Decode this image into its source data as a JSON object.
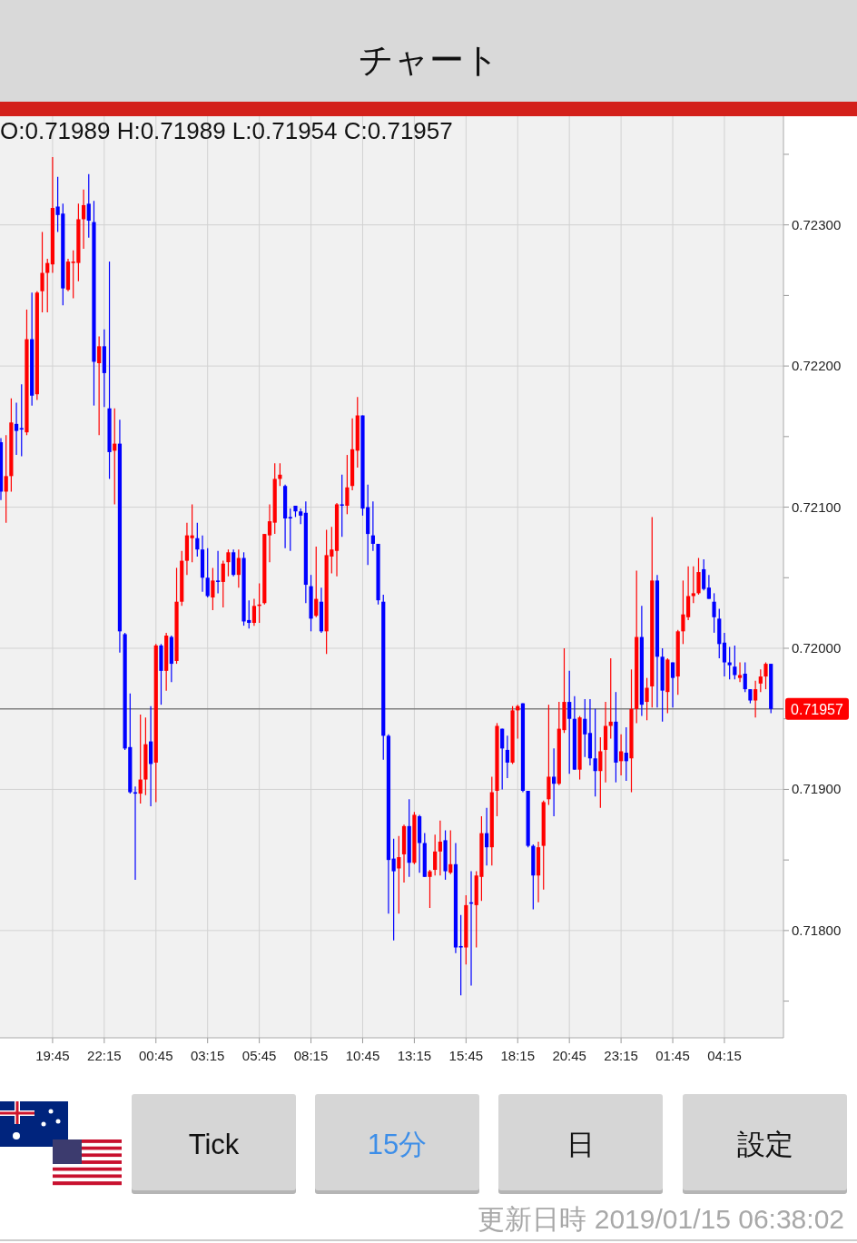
{
  "chart_data": {
    "type": "candlestick",
    "title": "チャート",
    "categories": [
      null,
      null,
      null,
      null,
      null,
      null,
      null,
      null,
      null,
      null,
      "19:45",
      null,
      null,
      null,
      null,
      null,
      null,
      null,
      null,
      null,
      "22:15",
      null,
      null,
      null,
      null,
      null,
      null,
      null,
      null,
      null,
      "00:45",
      null,
      null,
      null,
      null,
      null,
      null,
      null,
      null,
      null,
      "03:15",
      null,
      null,
      null,
      null,
      null,
      null,
      null,
      null,
      null,
      "05:45",
      null,
      null,
      null,
      null,
      null,
      null,
      null,
      null,
      null,
      "08:15",
      null,
      null,
      null,
      null,
      null,
      null,
      null,
      null,
      null,
      "10:45",
      null,
      null,
      null,
      null,
      null,
      null,
      null,
      null,
      null,
      "13:15",
      null,
      null,
      null,
      null,
      null,
      null,
      null,
      null,
      null,
      "15:45",
      null,
      null,
      null,
      null,
      null,
      null,
      null,
      null,
      null,
      "18:15",
      null,
      null,
      null,
      null,
      null,
      null,
      null,
      null,
      null,
      "20:45",
      null,
      null,
      null,
      null,
      null,
      null,
      null,
      null,
      null,
      "23:15",
      null,
      null,
      null,
      null,
      null,
      null,
      null,
      null,
      null,
      "01:45",
      null,
      null,
      null,
      null,
      null,
      null,
      null,
      null,
      null,
      "04:15",
      null,
      null,
      null,
      null,
      null,
      null,
      null,
      null,
      null
    ],
    "ohlc": [
      [
        0.72146,
        0.72149,
        0.72105,
        0.72111
      ],
      [
        0.72111,
        0.72151,
        0.72089,
        0.72122
      ],
      [
        0.72122,
        0.72177,
        0.72111,
        0.7216
      ],
      [
        0.72159,
        0.72174,
        0.72137,
        0.72154
      ],
      [
        0.72156,
        0.72187,
        0.72136,
        0.72155
      ],
      [
        0.72153,
        0.7224,
        0.72151,
        0.72219
      ],
      [
        0.72219,
        0.72252,
        0.72172,
        0.72179
      ],
      [
        0.7218,
        0.72253,
        0.72176,
        0.72252
      ],
      [
        0.72253,
        0.72295,
        0.72238,
        0.72266
      ],
      [
        0.72266,
        0.72276,
        0.72238,
        0.72273
      ],
      [
        0.72272,
        0.72348,
        0.72266,
        0.72312
      ],
      [
        0.72313,
        0.72334,
        0.72295,
        0.72307
      ],
      [
        0.72308,
        0.72315,
        0.72243,
        0.72255
      ],
      [
        0.72254,
        0.72276,
        0.72253,
        0.72274
      ],
      [
        0.72273,
        0.72282,
        0.72248,
        0.72274
      ],
      [
        0.72273,
        0.72315,
        0.7226,
        0.72304
      ],
      [
        0.72304,
        0.72325,
        0.72283,
        0.72314
      ],
      [
        0.72315,
        0.72336,
        0.72291,
        0.72303
      ],
      [
        0.72302,
        0.72317,
        0.72172,
        0.72203
      ],
      [
        0.72202,
        0.72221,
        0.72151,
        0.72214
      ],
      [
        0.72214,
        0.72226,
        0.72171,
        0.72195
      ],
      [
        0.7217,
        0.72274,
        0.7212,
        0.72139
      ],
      [
        0.7214,
        0.7217,
        0.72102,
        0.72145
      ],
      [
        0.72145,
        0.72162,
        0.71997,
        0.72012
      ],
      [
        0.7201,
        0.72011,
        0.71928,
        0.71929
      ],
      [
        0.7193,
        0.71968,
        0.71897,
        0.71898
      ],
      [
        0.71898,
        0.71902,
        0.71836,
        0.71897
      ],
      [
        0.71897,
        0.71953,
        0.7189,
        0.71907
      ],
      [
        0.71907,
        0.71951,
        0.71896,
        0.71932
      ],
      [
        0.71934,
        0.71959,
        0.71888,
        0.71918
      ],
      [
        0.71919,
        0.72003,
        0.71891,
        0.72002
      ],
      [
        0.72002,
        0.72003,
        0.7196,
        0.71984
      ],
      [
        0.71984,
        0.72011,
        0.7197,
        0.72009
      ],
      [
        0.72008,
        0.72009,
        0.71976,
        0.71989
      ],
      [
        0.71991,
        0.72057,
        0.71989,
        0.72033
      ],
      [
        0.72033,
        0.72069,
        0.7203,
        0.72062
      ],
      [
        0.72062,
        0.72089,
        0.72052,
        0.7208
      ],
      [
        0.72078,
        0.72102,
        0.72061,
        0.7208
      ],
      [
        0.72078,
        0.72089,
        0.72065,
        0.7207
      ],
      [
        0.7207,
        0.7208,
        0.7204,
        0.7205
      ],
      [
        0.7205,
        0.72071,
        0.72036,
        0.72037
      ],
      [
        0.72036,
        0.72057,
        0.72027,
        0.72048
      ],
      [
        0.72048,
        0.72069,
        0.72039,
        0.72047
      ],
      [
        0.72047,
        0.72062,
        0.72029,
        0.7206
      ],
      [
        0.72061,
        0.7207,
        0.72051,
        0.72068
      ],
      [
        0.72068,
        0.7207,
        0.72051,
        0.72052
      ],
      [
        0.72052,
        0.7207,
        0.72043,
        0.72064
      ],
      [
        0.72064,
        0.72068,
        0.72016,
        0.72019
      ],
      [
        0.7202,
        0.72034,
        0.72014,
        0.72018
      ],
      [
        0.72018,
        0.72035,
        0.72016,
        0.7203
      ],
      [
        0.7203,
        0.72046,
        0.72018,
        0.72031
      ],
      [
        0.72032,
        0.72081,
        0.72031,
        0.72081
      ],
      [
        0.7208,
        0.72102,
        0.72061,
        0.7209
      ],
      [
        0.72089,
        0.72131,
        0.72081,
        0.7212
      ],
      [
        0.7212,
        0.72131,
        0.72115,
        0.72123
      ],
      [
        0.72115,
        0.72116,
        0.72071,
        0.72092
      ],
      [
        0.72093,
        0.72099,
        0.72069,
        0.72092
      ],
      [
        0.72101,
        0.72101,
        0.72093,
        0.72097
      ],
      [
        0.72097,
        0.72099,
        0.72088,
        0.72094
      ],
      [
        0.72096,
        0.72104,
        0.72032,
        0.72045
      ],
      [
        0.72044,
        0.72052,
        0.72012,
        0.72021
      ],
      [
        0.72023,
        0.72072,
        0.72022,
        0.72035
      ],
      [
        0.72033,
        0.72043,
        0.72011,
        0.72012
      ],
      [
        0.72012,
        0.72084,
        0.71996,
        0.72066
      ],
      [
        0.72065,
        0.72086,
        0.72053,
        0.7207
      ],
      [
        0.72069,
        0.72103,
        0.72051,
        0.72102
      ],
      [
        0.72102,
        0.72123,
        0.72079,
        0.72101
      ],
      [
        0.72101,
        0.72137,
        0.72095,
        0.72114
      ],
      [
        0.72115,
        0.72163,
        0.72112,
        0.72141
      ],
      [
        0.7214,
        0.72178,
        0.72128,
        0.72165
      ],
      [
        0.72165,
        0.72165,
        0.72094,
        0.72099
      ],
      [
        0.721,
        0.72116,
        0.72059,
        0.72081
      ],
      [
        0.7208,
        0.72104,
        0.72069,
        0.72074
      ],
      [
        0.72074,
        0.72074,
        0.72031,
        0.72034
      ],
      [
        0.72033,
        0.72038,
        0.71921,
        0.71938
      ],
      [
        0.71938,
        0.71939,
        0.71812,
        0.7185
      ],
      [
        0.71851,
        0.71865,
        0.71793,
        0.71842
      ],
      [
        0.71844,
        0.71867,
        0.71812,
        0.71852
      ],
      [
        0.71854,
        0.71875,
        0.71834,
        0.71874
      ],
      [
        0.71874,
        0.71893,
        0.71838,
        0.71848
      ],
      [
        0.71848,
        0.71884,
        0.71847,
        0.71882
      ],
      [
        0.71881,
        0.71882,
        0.71841,
        0.71862
      ],
      [
        0.71862,
        0.71869,
        0.71838,
        0.71838
      ],
      [
        0.71838,
        0.71843,
        0.71816,
        0.71842
      ],
      [
        0.71843,
        0.71868,
        0.71839,
        0.71856
      ],
      [
        0.71856,
        0.71878,
        0.71839,
        0.71863
      ],
      [
        0.71864,
        0.71871,
        0.71836,
        0.71842
      ],
      [
        0.71841,
        0.71871,
        0.7184,
        0.71847
      ],
      [
        0.71847,
        0.71862,
        0.71784,
        0.71788
      ],
      [
        0.71789,
        0.71811,
        0.71754,
        0.71788
      ],
      [
        0.71788,
        0.71825,
        0.71776,
        0.71818
      ],
      [
        0.7182,
        0.71842,
        0.71761,
        0.71819
      ],
      [
        0.71818,
        0.71842,
        0.71788,
        0.71839
      ],
      [
        0.71838,
        0.71881,
        0.71821,
        0.71869
      ],
      [
        0.71869,
        0.71887,
        0.71846,
        0.71859
      ],
      [
        0.71859,
        0.71909,
        0.71846,
        0.71898
      ],
      [
        0.71899,
        0.71947,
        0.71881,
        0.71945
      ],
      [
        0.71943,
        0.71943,
        0.719,
        0.71929
      ],
      [
        0.71928,
        0.71938,
        0.71908,
        0.71919
      ],
      [
        0.71919,
        0.71959,
        0.71918,
        0.71956
      ],
      [
        0.71956,
        0.7196,
        0.71936,
        0.71959
      ],
      [
        0.71961,
        0.71961,
        0.71898,
        0.71899
      ],
      [
        0.71899,
        0.71899,
        0.71859,
        0.7186
      ],
      [
        0.7186,
        0.71861,
        0.71815,
        0.71839
      ],
      [
        0.71839,
        0.71863,
        0.7182,
        0.71859
      ],
      [
        0.7186,
        0.71892,
        0.71829,
        0.71891
      ],
      [
        0.71893,
        0.7196,
        0.71889,
        0.71909
      ],
      [
        0.71909,
        0.71929,
        0.71881,
        0.71904
      ],
      [
        0.71904,
        0.71962,
        0.71903,
        0.71943
      ],
      [
        0.71942,
        0.72,
        0.7194,
        0.71962
      ],
      [
        0.71962,
        0.71984,
        0.71911,
        0.7195
      ],
      [
        0.7195,
        0.71966,
        0.71914,
        0.71914
      ],
      [
        0.71914,
        0.71952,
        0.71907,
        0.71951
      ],
      [
        0.7195,
        0.71964,
        0.71923,
        0.71939
      ],
      [
        0.7194,
        0.71964,
        0.71917,
        0.71922
      ],
      [
        0.71922,
        0.71957,
        0.71895,
        0.71913
      ],
      [
        0.71913,
        0.71937,
        0.71887,
        0.71927
      ],
      [
        0.71928,
        0.71962,
        0.71905,
        0.71945
      ],
      [
        0.71945,
        0.71993,
        0.71936,
        0.71948
      ],
      [
        0.71948,
        0.71969,
        0.71905,
        0.71919
      ],
      [
        0.7192,
        0.71939,
        0.7191,
        0.71927
      ],
      [
        0.71926,
        0.71944,
        0.71906,
        0.7192
      ],
      [
        0.71922,
        0.71985,
        0.71898,
        0.71957
      ],
      [
        0.71957,
        0.72055,
        0.71947,
        0.72008
      ],
      [
        0.72008,
        0.7203,
        0.71952,
        0.7196
      ],
      [
        0.71962,
        0.71979,
        0.71949,
        0.71972
      ],
      [
        0.71973,
        0.72093,
        0.71958,
        0.72048
      ],
      [
        0.72048,
        0.72052,
        0.71958,
        0.71994
      ],
      [
        0.71994,
        0.72,
        0.71948,
        0.7197
      ],
      [
        0.71969,
        0.71993,
        0.71954,
        0.71992
      ],
      [
        0.7199,
        0.7199,
        0.71958,
        0.71979
      ],
      [
        0.7198,
        0.72013,
        0.71967,
        0.72012
      ],
      [
        0.72012,
        0.72048,
        0.72003,
        0.72024
      ],
      [
        0.72022,
        0.72058,
        0.7202,
        0.72037
      ],
      [
        0.72037,
        0.72058,
        0.72032,
        0.72039
      ],
      [
        0.72039,
        0.72064,
        0.72038,
        0.72054
      ],
      [
        0.72056,
        0.72063,
        0.72041,
        0.72042
      ],
      [
        0.72043,
        0.72052,
        0.72035,
        0.72035
      ],
      [
        0.72033,
        0.72039,
        0.72011,
        0.72022
      ],
      [
        0.72021,
        0.72028,
        0.71993,
        0.72003
      ],
      [
        0.72004,
        0.72011,
        0.7198,
        0.7199
      ],
      [
        0.7199,
        0.72001,
        0.71978,
        0.71988
      ],
      [
        0.71987,
        0.72002,
        0.71978,
        0.71981
      ],
      [
        0.71979,
        0.7199,
        0.71976,
        0.71981
      ],
      [
        0.71982,
        0.7199,
        0.71969,
        0.71971
      ],
      [
        0.71971,
        0.71971,
        0.71961,
        0.71963
      ],
      [
        0.71963,
        0.71977,
        0.71951,
        0.71971
      ],
      [
        0.71975,
        0.71985,
        0.71969,
        0.7198
      ],
      [
        0.7198,
        0.7199,
        0.71971,
        0.71989
      ],
      [
        0.71989,
        0.71989,
        0.71954,
        0.71957
      ]
    ],
    "colors": [
      "#0000ff",
      "#ff0000",
      "#ff0000",
      "#0000ff",
      "#0000ff",
      "#ff0000",
      "#0000ff",
      "#ff0000",
      "#ff0000",
      "#ff0000",
      "#ff0000",
      "#0000ff",
      "#0000ff",
      "#ff0000",
      "#ff0000",
      "#ff0000",
      "#ff0000",
      "#0000ff",
      "#0000ff",
      "#ff0000",
      "#0000ff",
      "#0000ff",
      "#ff0000",
      "#0000ff",
      "#0000ff",
      "#0000ff",
      "#0000ff",
      "#ff0000",
      "#ff0000",
      "#0000ff",
      "#ff0000",
      "#0000ff",
      "#ff0000",
      "#0000ff",
      "#ff0000",
      "#ff0000",
      "#ff0000",
      "#ff0000",
      "#0000ff",
      "#0000ff",
      "#0000ff",
      "#ff0000",
      "#0000ff",
      "#ff0000",
      "#ff0000",
      "#0000ff",
      "#ff0000",
      "#0000ff",
      "#0000ff",
      "#ff0000",
      "#ff0000",
      "#ff0000",
      "#ff0000",
      "#ff0000",
      "#ff0000",
      "#0000ff",
      "#0000ff",
      "#0000ff",
      "#0000ff",
      "#0000ff",
      "#0000ff",
      "#ff0000",
      "#0000ff",
      "#ff0000",
      "#ff0000",
      "#ff0000",
      "#0000ff",
      "#ff0000",
      "#ff0000",
      "#ff0000",
      "#0000ff",
      "#0000ff",
      "#0000ff",
      "#0000ff",
      "#0000ff",
      "#0000ff",
      "#0000ff",
      "#ff0000",
      "#ff0000",
      "#0000ff",
      "#ff0000",
      "#0000ff",
      "#0000ff",
      "#ff0000",
      "#ff0000",
      "#ff0000",
      "#0000ff",
      "#ff0000",
      "#0000ff",
      "#0000ff",
      "#ff0000",
      "#0000ff",
      "#ff0000",
      "#ff0000",
      "#0000ff",
      "#ff0000",
      "#ff0000",
      "#0000ff",
      "#0000ff",
      "#ff0000",
      "#ff0000",
      "#0000ff",
      "#0000ff",
      "#0000ff",
      "#ff0000",
      "#ff0000",
      "#ff0000",
      "#0000ff",
      "#ff0000",
      "#ff0000",
      "#0000ff",
      "#0000ff",
      "#ff0000",
      "#0000ff",
      "#0000ff",
      "#0000ff",
      "#ff0000",
      "#ff0000",
      "#ff0000",
      "#0000ff",
      "#ff0000",
      "#0000ff",
      "#ff0000",
      "#ff0000",
      "#0000ff",
      "#ff0000",
      "#ff0000",
      "#0000ff",
      "#0000ff",
      "#ff0000",
      "#0000ff",
      "#ff0000",
      "#ff0000",
      "#ff0000",
      "#ff0000",
      "#ff0000",
      "#0000ff",
      "#0000ff",
      "#0000ff",
      "#0000ff",
      "#0000ff",
      "#0000ff",
      "#0000ff",
      "#ff0000",
      "#0000ff",
      "#0000ff",
      "#ff0000",
      "#ff0000",
      "#ff0000",
      "#0000ff"
    ],
    "ylim": [
      0.71724,
      0.72377
    ],
    "yticks": [
      {
        "value": 0.7175,
        "label": null
      },
      {
        "value": 0.718,
        "label": "0.71800"
      },
      {
        "value": 0.7185,
        "label": null
      },
      {
        "value": 0.719,
        "label": "0.71900"
      },
      {
        "value": 0.7195,
        "label": null
      },
      {
        "value": 0.72,
        "label": "0.72000"
      },
      {
        "value": 0.7205,
        "label": null
      },
      {
        "value": 0.721,
        "label": "0.72100"
      },
      {
        "value": 0.7215,
        "label": null
      },
      {
        "value": 0.722,
        "label": "0.72200"
      },
      {
        "value": 0.7225,
        "label": null
      },
      {
        "value": 0.723,
        "label": "0.72300"
      },
      {
        "value": 0.7235,
        "label": null
      }
    ],
    "grid": true,
    "ref_lines": [
      {
        "axis": "y",
        "value": 0.71957,
        "label": "0.71957",
        "color": "#808080"
      }
    ],
    "annotations": [
      "O:0.71989 H:0.71989 L:0.71954 C:0.71957",
      "Tick",
      "15分",
      "日",
      "設定",
      "更新日時  2019/01/15 06:38:02"
    ]
  }
}
